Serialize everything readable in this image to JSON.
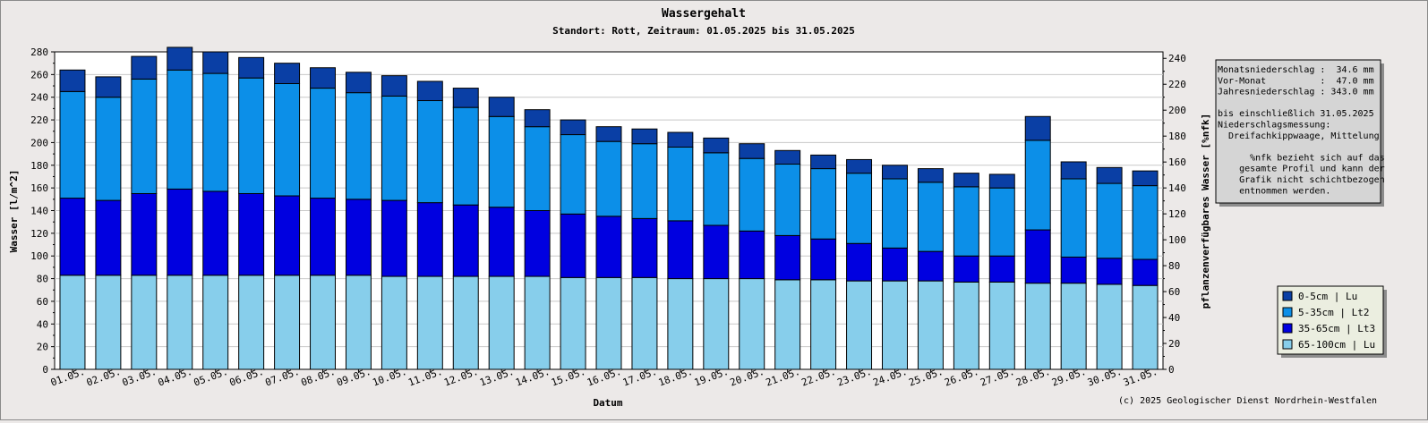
{
  "chart_data": {
    "type": "bar",
    "stacked": true,
    "title": "Wassergehalt",
    "subtitle": "Standort: Rott, Zeitraum: 01.05.2025 bis 31.05.2025",
    "xlabel": "Datum",
    "ylabel": "Wasser [l/m^2]",
    "y2label": "pflanzenverfügbares Wasser [%nfk]",
    "ylim": [
      0,
      280
    ],
    "y2lim": [
      0,
      245
    ],
    "yticks": [
      0,
      20,
      40,
      60,
      80,
      100,
      120,
      140,
      160,
      180,
      200,
      220,
      240,
      260,
      280
    ],
    "y2ticks": [
      0,
      20,
      40,
      60,
      80,
      100,
      120,
      140,
      160,
      180,
      200,
      220,
      240
    ],
    "grid": true,
    "legend_position": "right",
    "categories": [
      "01.05.",
      "02.05.",
      "03.05.",
      "04.05.",
      "05.05.",
      "06.05.",
      "07.05.",
      "08.05.",
      "09.05.",
      "10.05.",
      "11.05.",
      "12.05.",
      "13.05.",
      "14.05.",
      "15.05.",
      "16.05.",
      "17.05.",
      "18.05.",
      "19.05.",
      "20.05.",
      "21.05.",
      "22.05.",
      "23.05.",
      "24.05.",
      "25.05.",
      "26.05.",
      "27.05.",
      "28.05.",
      "29.05.",
      "30.05.",
      "31.05."
    ],
    "series": [
      {
        "name": "65-100cm | Lu",
        "color": "#87ceeb",
        "values": [
          83,
          83,
          83,
          83,
          83,
          83,
          83,
          83,
          83,
          82,
          82,
          82,
          82,
          82,
          81,
          81,
          81,
          80,
          80,
          80,
          79,
          79,
          78,
          78,
          78,
          77,
          77,
          76,
          76,
          75,
          74
        ]
      },
      {
        "name": "35-65cm | Lt3",
        "color": "#0000e0",
        "values": [
          68,
          66,
          72,
          76,
          74,
          72,
          70,
          68,
          67,
          67,
          65,
          63,
          61,
          58,
          56,
          54,
          52,
          51,
          47,
          42,
          39,
          36,
          33,
          29,
          26,
          23,
          23,
          47,
          23,
          23,
          23
        ]
      },
      {
        "name": "5-35cm | Lt2",
        "color": "#0c8fe8",
        "values": [
          94,
          91,
          101,
          105,
          104,
          102,
          99,
          97,
          94,
          92,
          90,
          86,
          80,
          74,
          70,
          66,
          66,
          65,
          64,
          64,
          63,
          62,
          62,
          61,
          61,
          61,
          60,
          79,
          69,
          66,
          65
        ]
      },
      {
        "name": "0-5cm | Lu",
        "color": "#0a3fa5",
        "values": [
          19,
          18,
          20,
          20,
          19,
          18,
          18,
          18,
          18,
          18,
          17,
          17,
          17,
          15,
          13,
          13,
          13,
          13,
          13,
          13,
          12,
          12,
          12,
          12,
          12,
          12,
          12,
          21,
          15,
          14,
          13
        ]
      }
    ]
  },
  "info": {
    "lines": [
      "Monatsniederschlag :  34.6 mm",
      "Vor-Monat          :  47.0 mm",
      "Jahresniederschlag : 343.0 mm",
      "",
      "bis einschließlich 31.05.2025",
      "Niederschlagsmessung:",
      "  Dreifachkippwaage, Mittelung",
      "",
      "      %nfk bezieht sich auf das",
      "    gesamte Profil und kann der",
      "    Grafik nicht schichtbezogen",
      "    entnommen werden."
    ]
  },
  "copyright": "(c) 2025 Geologischer Dienst Nordrhein-Westfalen"
}
